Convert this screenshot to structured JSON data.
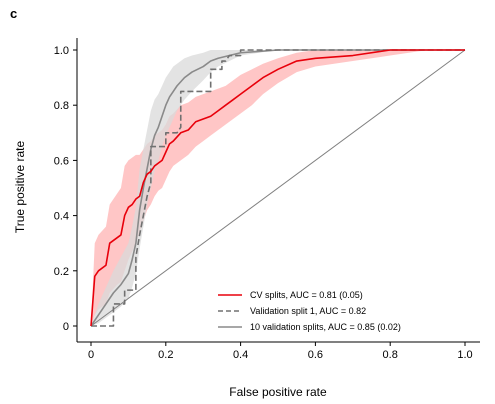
{
  "panel_letter": "c",
  "chart_data": {
    "type": "line",
    "title": "",
    "xlabel": "False positive rate",
    "ylabel": "True positive rate",
    "xlim": [
      0,
      1
    ],
    "ylim": [
      0,
      1
    ],
    "xticks": [
      "0",
      "0.2",
      "0.4",
      "0.6",
      "0.8",
      "1.0"
    ],
    "yticks": [
      "0",
      "0.2",
      "0.4",
      "0.6",
      "0.8",
      "1.0"
    ],
    "grid": false,
    "legend_position": "bottom-right",
    "series": [
      {
        "name": "CV splits, AUC = 0.81 (0.05)",
        "color": "#e8000b",
        "band_color": "#ffb3b3",
        "style": "solid",
        "x": [
          0,
          0.01,
          0.02,
          0.04,
          0.05,
          0.07,
          0.08,
          0.09,
          0.1,
          0.11,
          0.12,
          0.13,
          0.14,
          0.15,
          0.16,
          0.17,
          0.18,
          0.19,
          0.2,
          0.21,
          0.22,
          0.24,
          0.26,
          0.28,
          0.3,
          0.32,
          0.34,
          0.36,
          0.38,
          0.4,
          0.43,
          0.46,
          0.5,
          0.55,
          0.6,
          0.7,
          0.8,
          0.9,
          1.0
        ],
        "y": [
          0,
          0.18,
          0.2,
          0.22,
          0.3,
          0.32,
          0.33,
          0.4,
          0.43,
          0.44,
          0.46,
          0.47,
          0.52,
          0.55,
          0.56,
          0.58,
          0.59,
          0.6,
          0.63,
          0.66,
          0.67,
          0.7,
          0.71,
          0.74,
          0.75,
          0.76,
          0.78,
          0.8,
          0.82,
          0.84,
          0.87,
          0.9,
          0.93,
          0.96,
          0.97,
          0.98,
          1.0,
          1.0,
          1.0
        ],
        "lower": [
          0,
          0.04,
          0.06,
          0.08,
          0.12,
          0.15,
          0.16,
          0.2,
          0.24,
          0.27,
          0.3,
          0.34,
          0.38,
          0.42,
          0.44,
          0.47,
          0.49,
          0.5,
          0.53,
          0.56,
          0.58,
          0.6,
          0.62,
          0.65,
          0.67,
          0.69,
          0.71,
          0.73,
          0.75,
          0.77,
          0.8,
          0.84,
          0.88,
          0.92,
          0.94,
          0.96,
          0.98,
          1.0,
          1.0
        ],
        "upper": [
          0,
          0.3,
          0.33,
          0.36,
          0.44,
          0.48,
          0.5,
          0.58,
          0.6,
          0.61,
          0.62,
          0.62,
          0.64,
          0.66,
          0.67,
          0.69,
          0.7,
          0.71,
          0.73,
          0.76,
          0.77,
          0.8,
          0.81,
          0.83,
          0.84,
          0.85,
          0.86,
          0.87,
          0.89,
          0.91,
          0.93,
          0.95,
          0.97,
          0.99,
          1.0,
          1.0,
          1.0,
          1.0,
          1.0
        ]
      },
      {
        "name": "Validation split 1, AUC = 0.82",
        "color": "#707070",
        "style": "dashed",
        "x": [
          0,
          0.03,
          0.06,
          0.06,
          0.09,
          0.09,
          0.12,
          0.12,
          0.13,
          0.14,
          0.15,
          0.16,
          0.16,
          0.2,
          0.2,
          0.23,
          0.24,
          0.24,
          0.32,
          0.32,
          0.35,
          0.35,
          0.36,
          0.37,
          0.4,
          0.4,
          1.0
        ],
        "y": [
          0,
          0,
          0,
          0.08,
          0.08,
          0.13,
          0.13,
          0.25,
          0.33,
          0.4,
          0.47,
          0.52,
          0.65,
          0.65,
          0.7,
          0.7,
          0.72,
          0.85,
          0.85,
          0.93,
          0.93,
          0.96,
          0.96,
          0.98,
          0.98,
          1.0,
          1.0
        ]
      },
      {
        "name": "10 validation splits, AUC = 0.85 (0.02)",
        "color": "#8a8a8a",
        "band_color": "#d9d9d9",
        "style": "solid",
        "x": [
          0,
          0.02,
          0.04,
          0.06,
          0.08,
          0.1,
          0.11,
          0.12,
          0.13,
          0.14,
          0.15,
          0.16,
          0.17,
          0.18,
          0.19,
          0.2,
          0.21,
          0.22,
          0.23,
          0.25,
          0.27,
          0.3,
          0.32,
          0.34,
          0.37,
          0.4,
          0.5,
          0.7,
          1.0
        ],
        "y": [
          0,
          0.04,
          0.08,
          0.12,
          0.15,
          0.19,
          0.24,
          0.3,
          0.42,
          0.5,
          0.57,
          0.64,
          0.69,
          0.72,
          0.76,
          0.8,
          0.83,
          0.85,
          0.87,
          0.9,
          0.92,
          0.94,
          0.96,
          0.97,
          0.98,
          0.99,
          1.0,
          1.0,
          1.0
        ],
        "lower": [
          0,
          0.01,
          0.03,
          0.05,
          0.07,
          0.1,
          0.14,
          0.19,
          0.28,
          0.36,
          0.44,
          0.5,
          0.56,
          0.6,
          0.65,
          0.69,
          0.72,
          0.75,
          0.78,
          0.82,
          0.85,
          0.89,
          0.92,
          0.94,
          0.96,
          0.98,
          1.0,
          1.0,
          1.0
        ],
        "upper": [
          0,
          0.08,
          0.14,
          0.2,
          0.25,
          0.3,
          0.36,
          0.43,
          0.57,
          0.64,
          0.71,
          0.78,
          0.82,
          0.84,
          0.87,
          0.9,
          0.92,
          0.94,
          0.95,
          0.97,
          0.98,
          0.99,
          1.0,
          1.0,
          1.0,
          1.0,
          1.0,
          1.0,
          1.0
        ]
      }
    ],
    "reference_line": {
      "x": [
        0,
        1
      ],
      "y": [
        0,
        1
      ],
      "color": "#808080"
    }
  }
}
